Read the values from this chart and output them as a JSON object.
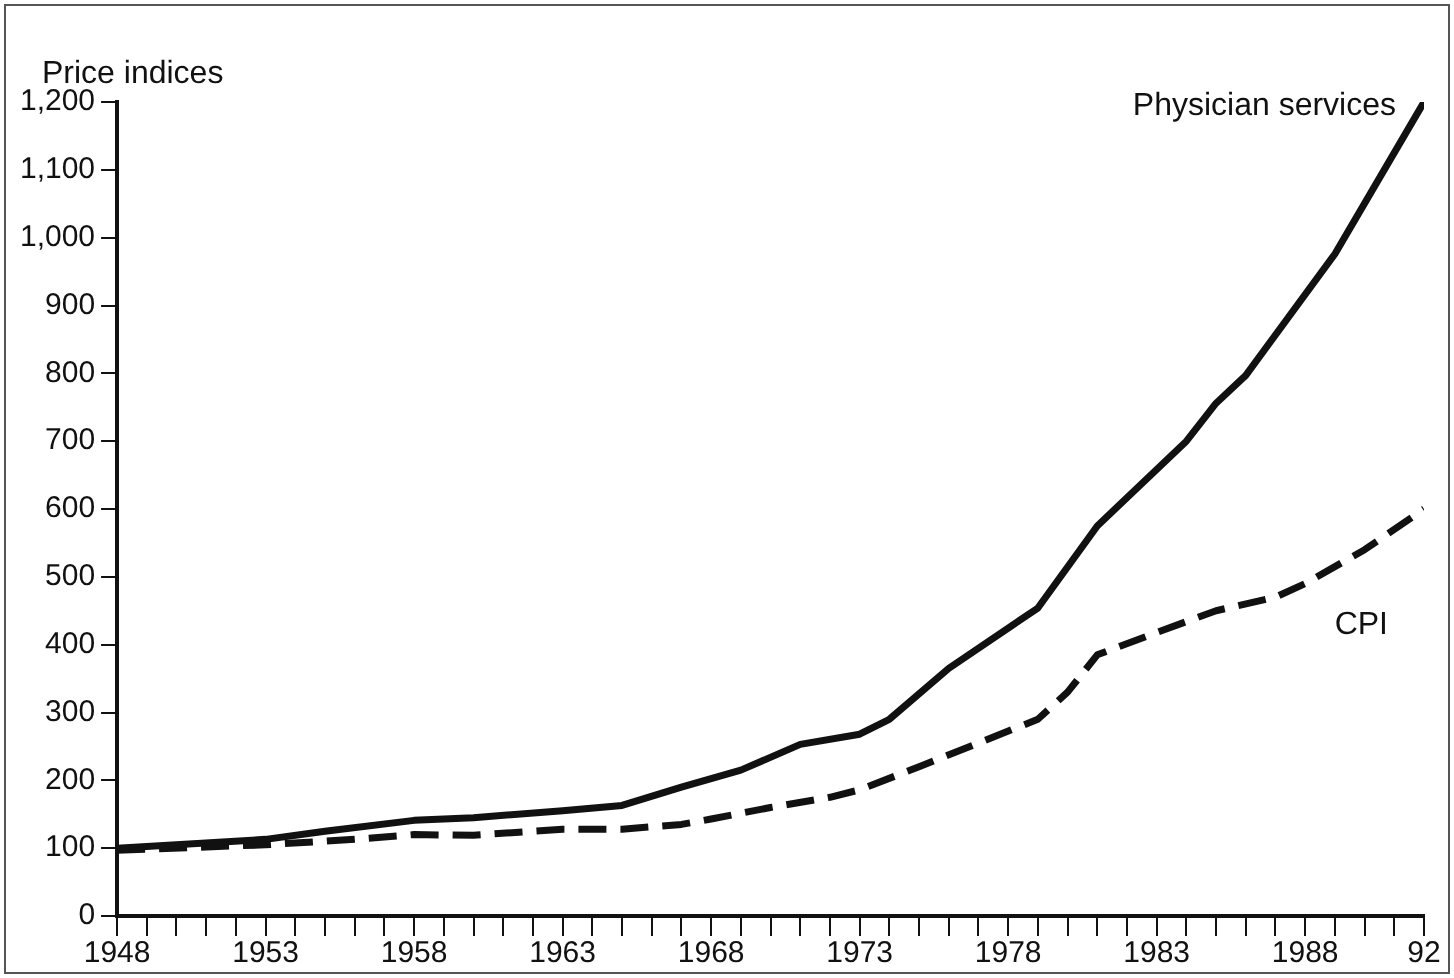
{
  "chart_data": {
    "type": "line",
    "ylabel": "Price indices",
    "xlim": [
      1948,
      1992
    ],
    "xticks": [
      1948,
      {
        "value": 1949,
        "label": null
      },
      {
        "value": 1950,
        "label": null
      },
      {
        "value": 1951,
        "label": null
      },
      {
        "value": 1952,
        "label": null
      },
      1953,
      {
        "value": 1954,
        "label": null
      },
      {
        "value": 1955,
        "label": null
      },
      {
        "value": 1956,
        "label": null
      },
      {
        "value": 1957,
        "label": null
      },
      1958,
      {
        "value": 1959,
        "label": null
      },
      {
        "value": 1960,
        "label": null
      },
      {
        "value": 1961,
        "label": null
      },
      {
        "value": 1962,
        "label": null
      },
      1963,
      {
        "value": 1964,
        "label": null
      },
      {
        "value": 1965,
        "label": null
      },
      {
        "value": 1966,
        "label": null
      },
      {
        "value": 1967,
        "label": null
      },
      1968,
      {
        "value": 1969,
        "label": null
      },
      {
        "value": 1970,
        "label": null
      },
      {
        "value": 1971,
        "label": null
      },
      {
        "value": 1972,
        "label": null
      },
      1973,
      {
        "value": 1974,
        "label": null
      },
      {
        "value": 1975,
        "label": null
      },
      {
        "value": 1976,
        "label": null
      },
      {
        "value": 1977,
        "label": null
      },
      1978,
      {
        "value": 1979,
        "label": null
      },
      {
        "value": 1980,
        "label": null
      },
      {
        "value": 1981,
        "label": null
      },
      {
        "value": 1982,
        "label": null
      },
      1983,
      {
        "value": 1984,
        "label": null
      },
      {
        "value": 1985,
        "label": null
      },
      {
        "value": 1986,
        "label": null
      },
      {
        "value": 1987,
        "label": null
      },
      1988,
      {
        "value": 1989,
        "label": null
      },
      {
        "value": 1990,
        "label": null
      },
      {
        "value": 1991,
        "label": null
      },
      {
        "value": 1992,
        "label": "92"
      }
    ],
    "ylim": [
      0,
      1200
    ],
    "yticks": [
      0,
      100,
      200,
      300,
      400,
      500,
      600,
      700,
      800,
      900,
      {
        "value": 1000,
        "label": "1,000"
      },
      {
        "value": 1100,
        "label": "1,100"
      },
      {
        "value": 1200,
        "label": "1,200"
      }
    ],
    "grid": false,
    "legend": false,
    "marker": "none",
    "series": [
      {
        "name": "Physician services",
        "color": "#111111",
        "line_style": "solid",
        "x": [
          1948,
          1953,
          1955,
          1958,
          1960,
          1963,
          1965,
          1967,
          1969,
          1971,
          1973,
          1974,
          1976,
          1979,
          1981,
          1984,
          1985,
          1986,
          1989,
          1992
        ],
        "values": [
          100,
          113,
          125,
          141,
          145,
          155,
          163,
          190,
          215,
          253,
          268,
          290,
          365,
          454,
          575,
          700,
          756,
          797,
          976,
          1200
        ]
      },
      {
        "name": "CPI",
        "color": "#111111",
        "line_style": "dashed",
        "x": [
          1948,
          1953,
          1956,
          1958,
          1960,
          1963,
          1965,
          1967,
          1968,
          1970,
          1972,
          1973,
          1975,
          1977,
          1979,
          1980,
          1981,
          1983,
          1985,
          1987,
          1988,
          1990,
          1992
        ],
        "values": [
          97,
          105,
          113,
          120,
          119,
          128,
          128,
          135,
          143,
          160,
          175,
          186,
          220,
          255,
          290,
          330,
          385,
          418,
          450,
          470,
          490,
          540,
          600
        ]
      }
    ]
  }
}
